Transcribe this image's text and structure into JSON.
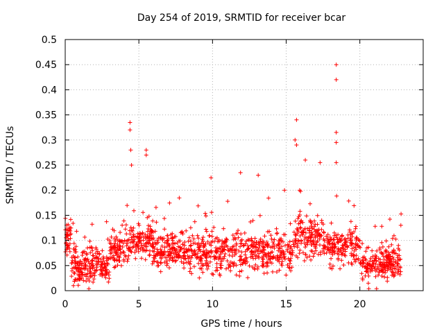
{
  "chart_data": {
    "type": "scatter",
    "title": "Day 254 of 2019, SRMTID for receiver bcar",
    "xlabel": "GPS time / hours",
    "ylabel": "SRMTID / TECUs",
    "xlim": [
      0,
      24.3
    ],
    "ylim": [
      0,
      0.5
    ],
    "xticks": [
      0,
      5,
      10,
      15,
      20
    ],
    "xtick_labels": [
      "0",
      "5",
      "10",
      "15",
      "20"
    ],
    "yticks": [
      0,
      0.05,
      0.1,
      0.15,
      0.2,
      0.25,
      0.3,
      0.35,
      0.4,
      0.45,
      0.5
    ],
    "ytick_labels": [
      "0",
      "0.05",
      "0.1",
      "0.15",
      "0.2",
      "0.25",
      "0.3",
      "0.35",
      "0.4",
      "0.45",
      "0.5"
    ],
    "grid": true,
    "marker": "+",
    "marker_color": "#ff0000",
    "series": [
      {
        "name": "SRMTID",
        "x_range": [
          0,
          22.8
        ],
        "median_y": 0.07,
        "notable_points": [
          {
            "x": 4.4,
            "y": 0.335
          },
          {
            "x": 4.4,
            "y": 0.32
          },
          {
            "x": 4.45,
            "y": 0.28
          },
          {
            "x": 4.5,
            "y": 0.25
          },
          {
            "x": 5.5,
            "y": 0.28
          },
          {
            "x": 5.5,
            "y": 0.27
          },
          {
            "x": 15.7,
            "y": 0.34
          },
          {
            "x": 15.6,
            "y": 0.3
          },
          {
            "x": 15.7,
            "y": 0.29
          },
          {
            "x": 18.4,
            "y": 0.45
          },
          {
            "x": 18.4,
            "y": 0.42
          },
          {
            "x": 18.4,
            "y": 0.315
          },
          {
            "x": 18.4,
            "y": 0.295
          },
          {
            "x": 18.4,
            "y": 0.255
          },
          {
            "x": 11.9,
            "y": 0.235
          },
          {
            "x": 13.1,
            "y": 0.23
          },
          {
            "x": 9.9,
            "y": 0.225
          },
          {
            "x": 16.3,
            "y": 0.26
          },
          {
            "x": 17.3,
            "y": 0.255
          }
        ]
      }
    ]
  }
}
